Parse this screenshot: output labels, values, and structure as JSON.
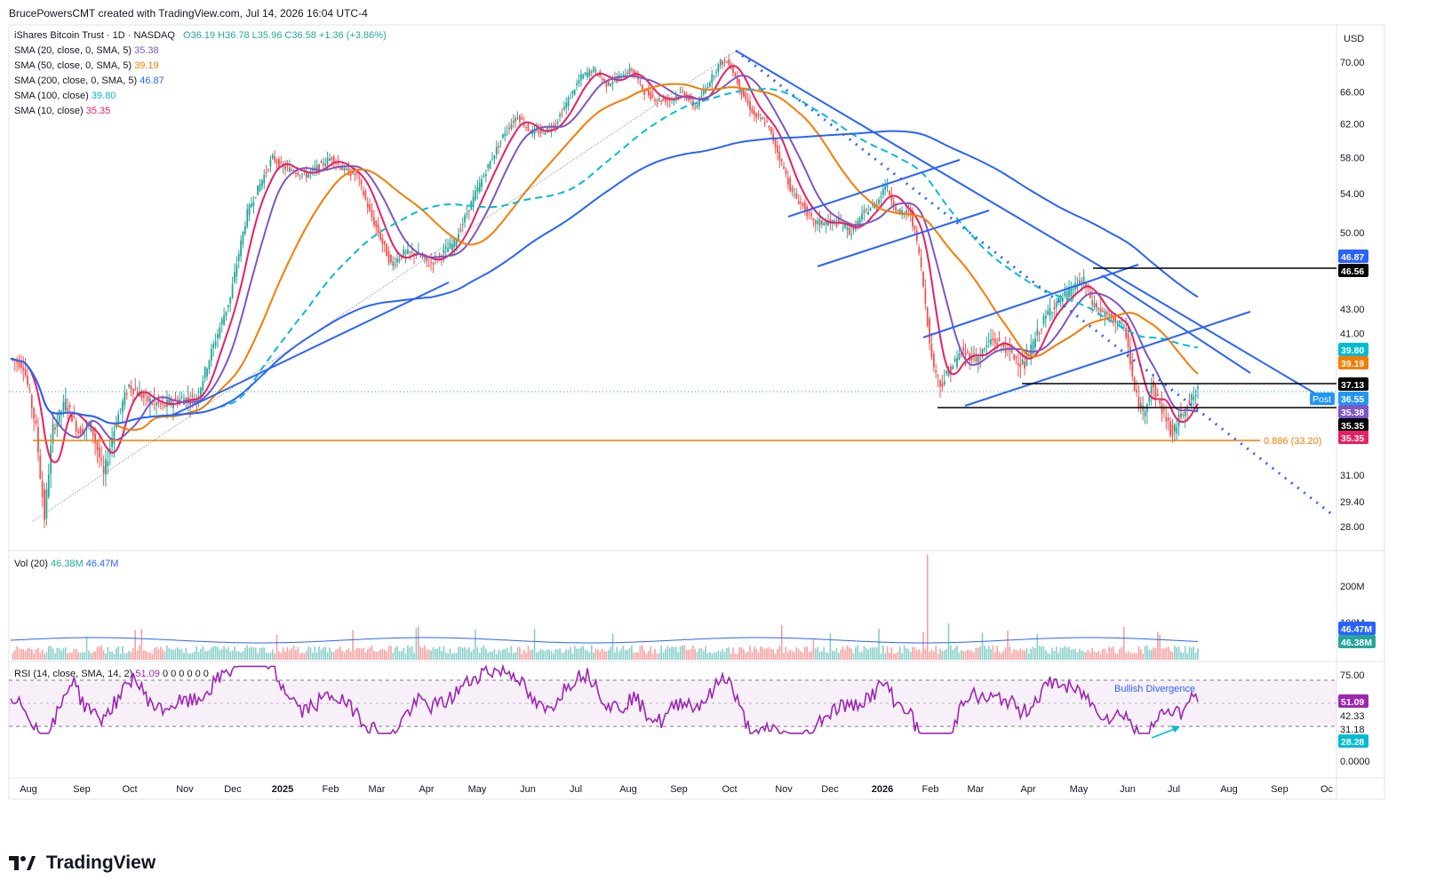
{
  "header": {
    "attribution": "BrucePowersCMT created with TradingView.com, Jul 14, 2026 16:04 UTC-4"
  },
  "brand": {
    "name": "TradingView"
  },
  "colors": {
    "up": "#26a69a",
    "down": "#ef5350",
    "sma20": "#7e57c2",
    "sma50": "#f57c00",
    "sma200": "#2962ff",
    "sma100": "#00bcd4",
    "sma10": "#e91e63",
    "trend": "#2962ff",
    "fib": "#f57c00",
    "rsi": "#9c27b0"
  },
  "legend": {
    "symbol": "iShares Bitcoin Trust · 1D · NASDAQ",
    "ohlc": "O36.19 H36.78 L35.96 C36.58 +1.36 (+3.86%)",
    "sma20": {
      "label": "SMA (20, close, 0, SMA, 5)",
      "value": "35.38"
    },
    "sma50": {
      "label": "SMA (50, close, 0, SMA, 5)",
      "value": "39.19"
    },
    "sma200": {
      "label": "SMA (200, close, 0, SMA, 5)",
      "value": "46.87"
    },
    "sma100": {
      "label": "SMA (100, close)",
      "value": "39.80"
    },
    "sma10": {
      "label": "SMA (10, close)",
      "value": "35.35"
    },
    "vol": {
      "label": "Vol (20)",
      "v1": "46.38M",
      "v2": "46.47M"
    },
    "rsi": {
      "label": "RSI (14, close, SMA, 14, 2)",
      "value": "51.09",
      "tail": "0 0 0 0 0 0"
    }
  },
  "currency": "USD",
  "chart_data": {
    "type": "candlestick",
    "price_axis_ticks": [
      "70.00",
      "66.00",
      "62.00",
      "58.00",
      "54.00",
      "50.00",
      "43.00",
      "41.00",
      "31.00",
      "29.40",
      "28.00"
    ],
    "time_axis_labels": [
      "Aug",
      "Sep",
      "Oct",
      "Nov",
      "Dec",
      "2025",
      "Feb",
      "Mar",
      "Apr",
      "May",
      "Jun",
      "Jul",
      "Aug",
      "Sep",
      "Oct",
      "Nov",
      "Dec",
      "2026",
      "Feb",
      "Mar",
      "Apr",
      "May",
      "Jun",
      "Jul",
      "Aug",
      "Sep",
      "Oc"
    ],
    "price_path": [
      [
        0,
        39
      ],
      [
        6,
        38.5
      ],
      [
        12,
        34
      ],
      [
        14,
        31
      ],
      [
        16,
        28.5
      ],
      [
        20,
        34
      ],
      [
        26,
        35.8
      ],
      [
        32,
        33.8
      ],
      [
        38,
        34.2
      ],
      [
        44,
        31
      ],
      [
        50,
        34.5
      ],
      [
        56,
        37
      ],
      [
        64,
        36
      ],
      [
        72,
        35.5
      ],
      [
        80,
        36
      ],
      [
        88,
        36
      ],
      [
        96,
        40
      ],
      [
        104,
        44
      ],
      [
        112,
        52
      ],
      [
        118,
        55
      ],
      [
        124,
        58
      ],
      [
        128,
        57
      ],
      [
        134,
        56.5
      ],
      [
        140,
        56
      ],
      [
        146,
        57
      ],
      [
        152,
        58
      ],
      [
        158,
        56.5
      ],
      [
        164,
        56
      ],
      [
        170,
        52
      ],
      [
        176,
        49
      ],
      [
        180,
        47
      ],
      [
        186,
        48
      ],
      [
        192,
        48
      ],
      [
        198,
        47
      ],
      [
        204,
        48
      ],
      [
        210,
        49
      ],
      [
        216,
        52
      ],
      [
        222,
        55
      ],
      [
        228,
        58
      ],
      [
        234,
        61
      ],
      [
        240,
        63
      ],
      [
        246,
        61
      ],
      [
        252,
        61
      ],
      [
        258,
        62
      ],
      [
        264,
        65
      ],
      [
        270,
        68
      ],
      [
        276,
        69
      ],
      [
        282,
        67
      ],
      [
        288,
        68
      ],
      [
        294,
        69
      ],
      [
        300,
        66
      ],
      [
        306,
        65
      ],
      [
        312,
        65
      ],
      [
        318,
        66
      ],
      [
        324,
        64
      ],
      [
        330,
        67
      ],
      [
        336,
        70
      ],
      [
        340,
        70
      ],
      [
        346,
        66
      ],
      [
        352,
        63
      ],
      [
        358,
        62
      ],
      [
        364,
        58
      ],
      [
        370,
        54
      ],
      [
        374,
        53
      ],
      [
        380,
        51
      ],
      [
        386,
        51
      ],
      [
        392,
        51
      ],
      [
        398,
        50
      ],
      [
        404,
        52
      ],
      [
        410,
        53
      ],
      [
        414,
        55
      ],
      [
        420,
        52
      ],
      [
        426,
        52
      ],
      [
        430,
        48
      ],
      [
        432,
        45
      ],
      [
        436,
        39
      ],
      [
        440,
        37
      ],
      [
        444,
        38
      ],
      [
        450,
        39.5
      ],
      [
        458,
        39
      ],
      [
        464,
        40.5
      ],
      [
        470,
        40
      ],
      [
        476,
        39
      ],
      [
        480,
        38.5
      ],
      [
        486,
        41
      ],
      [
        492,
        43
      ],
      [
        498,
        44
      ],
      [
        504,
        45
      ],
      [
        508,
        45.5
      ],
      [
        512,
        43.5
      ],
      [
        518,
        42.5
      ],
      [
        524,
        42
      ],
      [
        528,
        41
      ],
      [
        532,
        36.5
      ],
      [
        536,
        35
      ],
      [
        540,
        37
      ],
      [
        546,
        35
      ],
      [
        550,
        33.5
      ],
      [
        554,
        35
      ],
      [
        558,
        35.8
      ],
      [
        562,
        36.58
      ]
    ],
    "moving_averages": {
      "SMA 20": {
        "color_key": "sma20",
        "last": 35.38
      },
      "SMA 50": {
        "color_key": "sma50",
        "last": 39.19
      },
      "SMA 100": {
        "color_key": "sma100",
        "last": 39.8
      },
      "SMA 200": {
        "color_key": "sma200",
        "last": 46.87
      },
      "SMA 10": {
        "color_key": "sma10",
        "last": 35.35
      }
    },
    "horizontal_levels": [
      {
        "value": 46.56,
        "label": "46.56"
      },
      {
        "value": 37.13,
        "label": "37.13"
      },
      {
        "value": 35.35,
        "label": "35.35"
      }
    ],
    "fib_level": {
      "value": 33.2,
      "label": "0.886 (33.20)"
    },
    "price_labels": [
      {
        "text": "46.87",
        "bg": "#2962ff",
        "fg": "#ffffff",
        "value": 46.87
      },
      {
        "text": "46.56",
        "bg": "#000000",
        "fg": "#ffffff",
        "value": 46.56
      },
      {
        "text": "39.80",
        "bg": "#00bcd4",
        "fg": "#ffffff",
        "value": 39.8
      },
      {
        "text": "39.19",
        "bg": "#f57c00",
        "fg": "#ffffff",
        "value": 39.19
      },
      {
        "text": "37.13",
        "bg": "#000000",
        "fg": "#ffffff",
        "value": 37.13
      },
      {
        "text": "36.55",
        "bg": "#2196f3",
        "fg": "#ffffff",
        "value": 36.55
      },
      {
        "text": "35.38",
        "bg": "#7e57c2",
        "fg": "#ffffff",
        "value": 35.38
      },
      {
        "text": "35.35",
        "bg": "#000000",
        "fg": "#ffffff",
        "value": 35.35
      },
      {
        "text": "35.35",
        "bg": "#e91e63",
        "fg": "#ffffff",
        "value": 35.35
      }
    ],
    "post_label": "Post",
    "volume": {
      "axis_ticks": [
        "200M",
        "100M"
      ],
      "labels": [
        {
          "text": "46.47M",
          "bg": "#2962ff"
        },
        {
          "text": "46.38M",
          "bg": "#26a69a"
        }
      ]
    },
    "rsi": {
      "axis_ticks": [
        "75.00",
        "42.33",
        "31.18",
        "0.0000"
      ],
      "labels": [
        {
          "text": "51.09",
          "bg": "#9c27b0"
        },
        {
          "text": "28.28",
          "bg": "#00bcd4"
        }
      ],
      "annotation": "Bullish Divergence",
      "overbought": 70,
      "oversold": 30,
      "mid": 50,
      "last": 51.09
    }
  }
}
